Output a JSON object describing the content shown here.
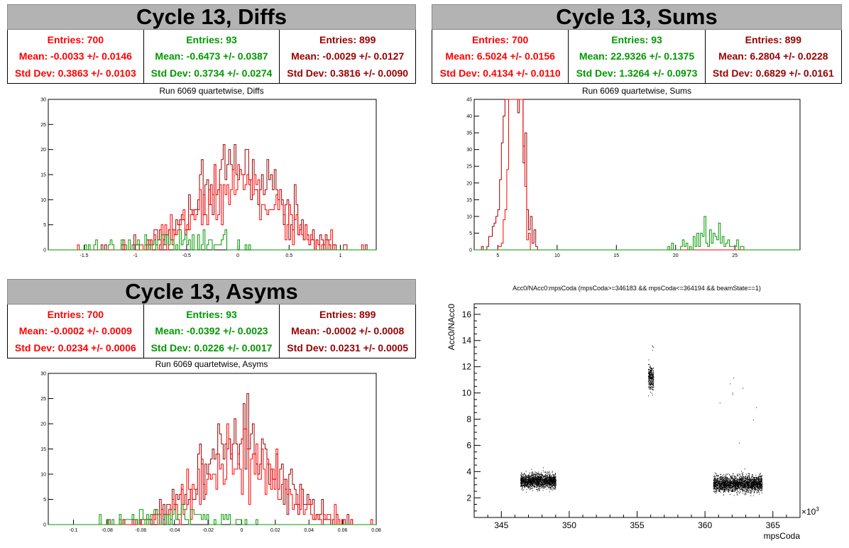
{
  "colors": {
    "red": "#ff0000",
    "green": "#009900",
    "darkred": "#990000",
    "banner": "#b3b3b3"
  },
  "panels": [
    {
      "id": "diffs",
      "banner": "Cycle 13, Diffs",
      "subtitle": "Run 6069 quartetwise, Diffs",
      "stats": [
        {
          "entries": "Entries: 700",
          "mean": "Mean: -0.0033 +/- 0.0146",
          "std": "Std Dev: 0.3863 +/- 0.0103"
        },
        {
          "entries": "Entries: 93",
          "mean": "Mean: -0.6473 +/- 0.0387",
          "std": "Std Dev: 0.3734 +/- 0.0274"
        },
        {
          "entries": "Entries: 899",
          "mean": "Mean: -0.0029 +/- 0.0127",
          "std": "Std Dev: 0.3816 +/- 0.0090"
        }
      ]
    },
    {
      "id": "sums",
      "banner": "Cycle 13, Sums",
      "subtitle": "Run 6069 quartetwise, Sums",
      "stats": [
        {
          "entries": "Entries: 700",
          "mean": "Mean: 6.5024 +/- 0.0156",
          "std": "Std Dev: 0.4134 +/- 0.0110"
        },
        {
          "entries": "Entries: 93",
          "mean": "Mean: 22.9326 +/- 0.1375",
          "std": "Std Dev: 1.3264 +/- 0.0973"
        },
        {
          "entries": "Entries: 899",
          "mean": "Mean: 6.2804 +/- 0.0228",
          "std": "Std Dev: 0.6829 +/- 0.0161"
        }
      ]
    },
    {
      "id": "asyms",
      "banner": "Cycle 13, Asyms",
      "subtitle": "Run 6069 quartetwise, Asyms",
      "stats": [
        {
          "entries": "Entries: 700",
          "mean": "Mean: -0.0002 +/- 0.0009",
          "std": "Std Dev: 0.0234 +/- 0.0006"
        },
        {
          "entries": "Entries: 93",
          "mean": "Mean: -0.0392 +/- 0.0023",
          "std": "Std Dev: 0.0226 +/- 0.0017"
        },
        {
          "entries": "Entries: 899",
          "mean": "Mean: -0.0002 +/- 0.0008",
          "std": "Std Dev: 0.0231 +/- 0.0005"
        }
      ]
    }
  ],
  "chart_data": [
    {
      "id": "diffs",
      "type": "histogram",
      "xlim": [
        -1.85,
        1.35
      ],
      "ylim": [
        0,
        30
      ],
      "xticks": [
        -1.5,
        -1,
        -0.5,
        0,
        0.5,
        1
      ],
      "xtick_labels": [
        "-1.5",
        "-1",
        "-0.5",
        "0",
        "0.5",
        "1"
      ],
      "yticks": [
        0,
        5,
        10,
        15,
        20,
        25,
        30
      ],
      "ytick_labels": [
        "0",
        "5",
        "10",
        "15",
        "20",
        "25",
        "30"
      ],
      "series": [
        {
          "color": "red",
          "mean": -0.0033,
          "std": 0.3863,
          "count": 700
        },
        {
          "color": "green",
          "mean": -0.6473,
          "std": 0.3734,
          "count": 93
        },
        {
          "color": "darkred",
          "mean": -0.0029,
          "std": 0.3816,
          "count": 899
        }
      ]
    },
    {
      "id": "sums",
      "type": "histogram",
      "xlim": [
        3,
        30.5
      ],
      "ylim": [
        0,
        45
      ],
      "xticks": [
        5,
        10,
        15,
        20,
        25
      ],
      "xtick_labels": [
        "5",
        "10",
        "15",
        "20",
        "25"
      ],
      "yticks": [
        0,
        5,
        10,
        15,
        20,
        25,
        30,
        35,
        40,
        45
      ],
      "ytick_labels": [
        "0",
        "5",
        "10",
        "15",
        "20",
        "25",
        "30",
        "35",
        "40",
        "45"
      ],
      "series": [
        {
          "color": "red",
          "mean": 6.5024,
          "std": 0.4134,
          "count": 700
        },
        {
          "color": "green",
          "mean": 22.9326,
          "std": 1.3264,
          "count": 93
        },
        {
          "color": "darkred",
          "mean": 6.2804,
          "std": 0.6829,
          "count": 899
        }
      ]
    },
    {
      "id": "asyms",
      "type": "histogram",
      "xlim": [
        -0.115,
        0.08
      ],
      "ylim": [
        0,
        30
      ],
      "xticks": [
        -0.1,
        -0.08,
        -0.06,
        -0.04,
        -0.02,
        0,
        0.02,
        0.04,
        0.06,
        0.08
      ],
      "xtick_labels": [
        "-0.1",
        "-0.08",
        "-0.06",
        "-0.04",
        "-0.02",
        "0",
        "0.02",
        "0.04",
        "0.06",
        "0.08"
      ],
      "yticks": [
        0,
        5,
        10,
        15,
        20,
        25,
        30
      ],
      "ytick_labels": [
        "0",
        "5",
        "10",
        "15",
        "20",
        "25",
        "30"
      ],
      "series": [
        {
          "color": "red",
          "mean": -0.0002,
          "std": 0.0234,
          "count": 700
        },
        {
          "color": "green",
          "mean": -0.0392,
          "std": 0.0226,
          "count": 93
        },
        {
          "color": "darkred",
          "mean": -0.0002,
          "std": 0.0231,
          "count": 899
        }
      ]
    },
    {
      "id": "scatter",
      "type": "scatter",
      "title": "Acc0/NAcc0:mpsCoda (mpsCoda>=346183 && mpsCoda<=364194 && beamState==1)",
      "xlabel": "mpsCoda",
      "ylabel": "Acc0/NAcc0",
      "xexponent": "×10",
      "xexponent_power": "3",
      "xlim": [
        343,
        367
      ],
      "ylim": [
        0.5,
        16.8
      ],
      "xticks": [
        345,
        350,
        355,
        360,
        365
      ],
      "xtick_labels": [
        "345",
        "350",
        "355",
        "360",
        "365"
      ],
      "yticks": [
        2,
        4,
        6,
        8,
        10,
        12,
        14,
        16
      ],
      "ytick_labels": [
        "2",
        "4",
        "6",
        "8",
        "10",
        "12",
        "14",
        "16"
      ],
      "clusters": [
        {
          "x": [
            346.4,
            349.0
          ],
          "y_center": 3.3,
          "y_spread": 0.45
        },
        {
          "x": [
            355.8,
            356.2
          ],
          "y_center": 11.2,
          "y_spread": 0.7
        },
        {
          "x": [
            360.6,
            364.2
          ],
          "y_center": 3.1,
          "y_spread": 0.5
        }
      ]
    }
  ]
}
